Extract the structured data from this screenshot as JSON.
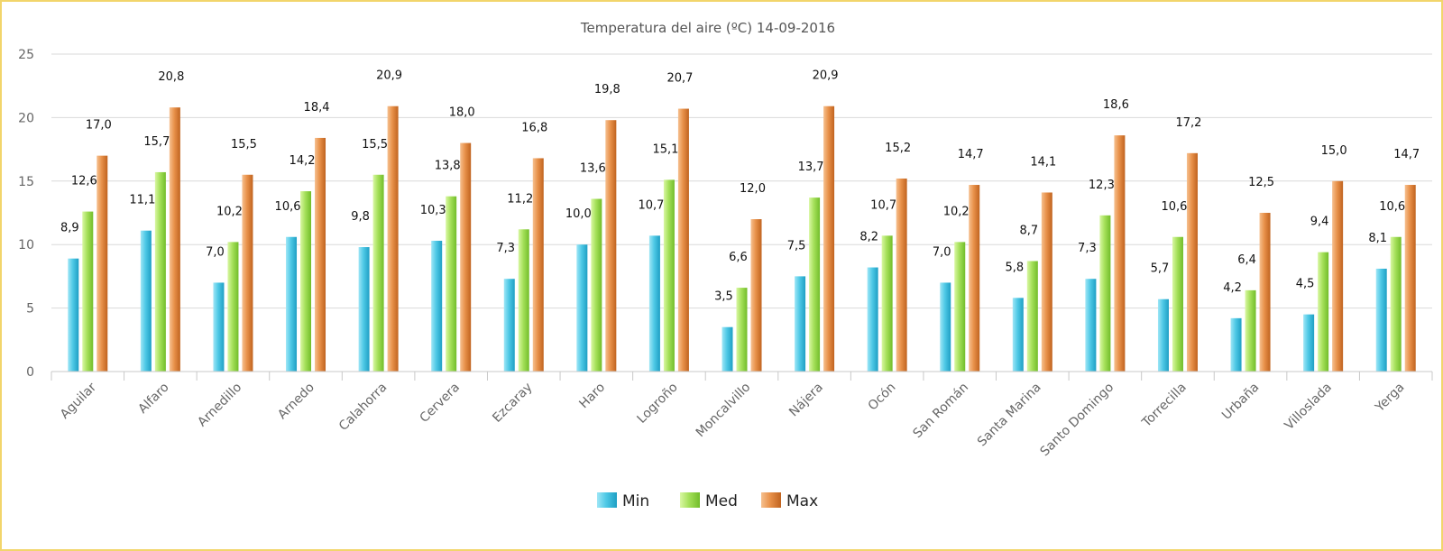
{
  "chart_data": {
    "type": "bar",
    "title": "Temperatura del aire (ºC) 14-09-2016",
    "xlabel": "",
    "ylabel": "",
    "ylim": [
      0,
      25
    ],
    "yticks": [
      0,
      5,
      10,
      15,
      20,
      25
    ],
    "grid": true,
    "legend_position": "bottom-center",
    "categories": [
      "Aguilar",
      "Alfaro",
      "Arnedillo",
      "Arnedo",
      "Calahorra",
      "Cervera",
      "Ezcaray",
      "Haro",
      "Logroño",
      "Moncalvillo",
      "Nájera",
      "Ocón",
      "San Román",
      "Santa Marina",
      "Santo Domingo",
      "Torrecilla",
      "Urbaña",
      "Villoslada",
      "Yerga"
    ],
    "series": [
      {
        "name": "Min",
        "color": "#4fc9e6",
        "values": [
          8.9,
          11.1,
          7.0,
          10.6,
          9.8,
          10.3,
          7.3,
          10.0,
          10.7,
          3.5,
          7.5,
          8.2,
          7.0,
          5.8,
          7.3,
          5.7,
          4.2,
          4.5,
          8.1
        ],
        "labels": [
          "8,9",
          "11,1",
          "7,0",
          "10,6",
          "9,8",
          "10,3",
          "7,3",
          "10,0",
          "10,7",
          "3,5",
          "7,5",
          "8,2",
          "7,0",
          "5,8",
          "7,3",
          "5,7",
          "4,2",
          "4,5",
          "8,1"
        ]
      },
      {
        "name": "Med",
        "color": "#a5e05a",
        "values": [
          12.6,
          15.7,
          10.2,
          14.2,
          15.5,
          13.8,
          11.2,
          13.6,
          15.1,
          6.6,
          13.7,
          10.7,
          10.2,
          8.7,
          12.3,
          10.6,
          6.4,
          9.4,
          10.6
        ],
        "labels": [
          "12,6",
          "15,7",
          "10,2",
          "14,2",
          "15,5",
          "13,8",
          "11,2",
          "13,6",
          "15,1",
          "6,6",
          "13,7",
          "10,7",
          "10,2",
          "8,7",
          "12,3",
          "10,6",
          "6,4",
          "9,4",
          "10,6"
        ]
      },
      {
        "name": "Max",
        "color": "#e8914a",
        "values": [
          17.0,
          20.8,
          15.5,
          18.4,
          20.9,
          18.0,
          16.8,
          19.8,
          20.7,
          12.0,
          20.9,
          15.2,
          14.7,
          14.1,
          18.6,
          17.2,
          12.5,
          15.0,
          14.7
        ],
        "labels": [
          "17,0",
          "20,8",
          "15,5",
          "18,4",
          "20,9",
          "18,0",
          "16,8",
          "19,8",
          "20,7",
          "12,0",
          "20,9",
          "15,2",
          "14,7",
          "14,1",
          "18,6",
          "17,2",
          "12,5",
          "15,0",
          "14,7"
        ]
      }
    ]
  }
}
